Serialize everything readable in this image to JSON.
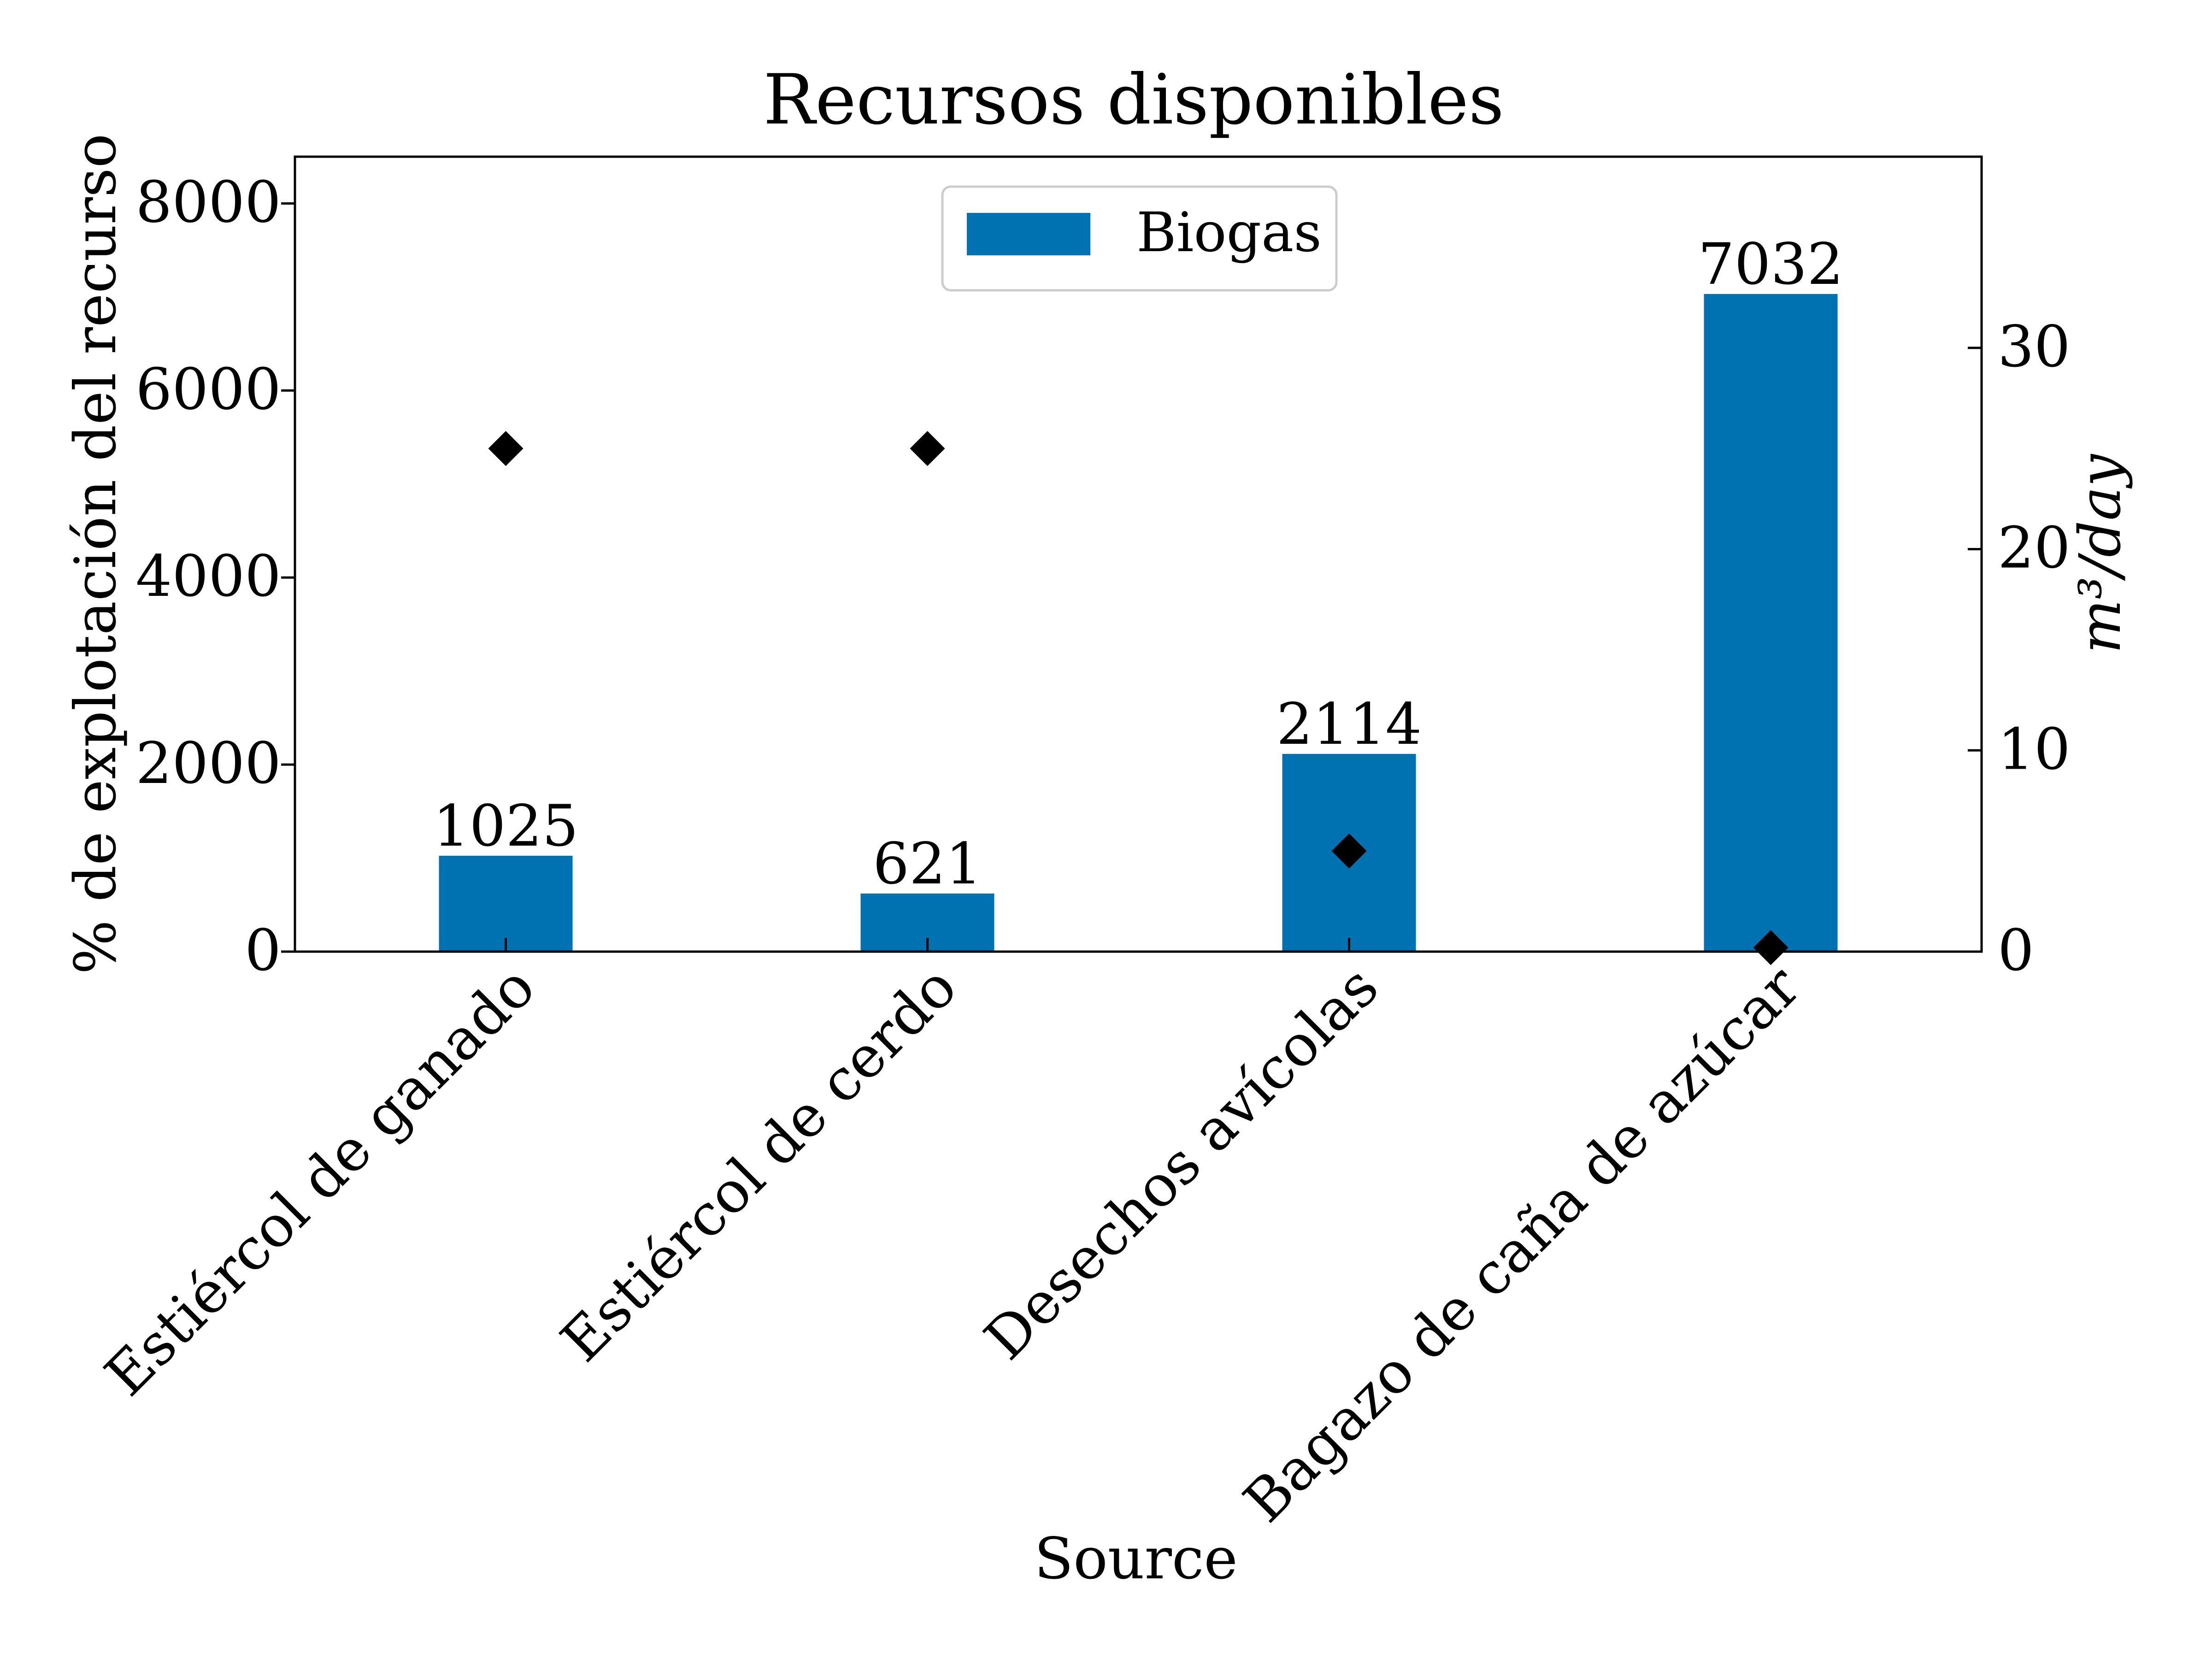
{
  "chart_data": {
    "type": "bar",
    "title": "Recursos disponibles",
    "xlabel": "Source",
    "ylabel": "% de explotación del recurso",
    "y2label": "m³/day",
    "categories": [
      "Estiércol de ganado",
      "Estiércol de cerdo",
      "Desechos avícolas",
      "Bagazo de caña de azúcar"
    ],
    "series": [
      {
        "name": "Biogas",
        "axis": "left",
        "kind": "bar",
        "values": [
          1025,
          621,
          2114,
          7032
        ],
        "labels": [
          "1025",
          "621",
          "2114",
          "7032"
        ],
        "color": "#0072B2"
      },
      {
        "axis": "right",
        "kind": "scatter",
        "marker": "diamond",
        "values": [
          25,
          25,
          5,
          0.2
        ],
        "color": "#000000"
      }
    ],
    "ylim": [
      0,
      8500
    ],
    "y2lim": [
      0,
      39.5
    ],
    "yticks": [
      0,
      2000,
      4000,
      6000,
      8000
    ],
    "y2ticks": [
      0,
      10,
      20,
      30
    ],
    "ytick_labels": [
      "0",
      "2000",
      "4000",
      "6000",
      "8000"
    ],
    "y2tick_labels": [
      "0",
      "10",
      "20",
      "30"
    ],
    "legend_position": "top-center",
    "grid": false
  }
}
